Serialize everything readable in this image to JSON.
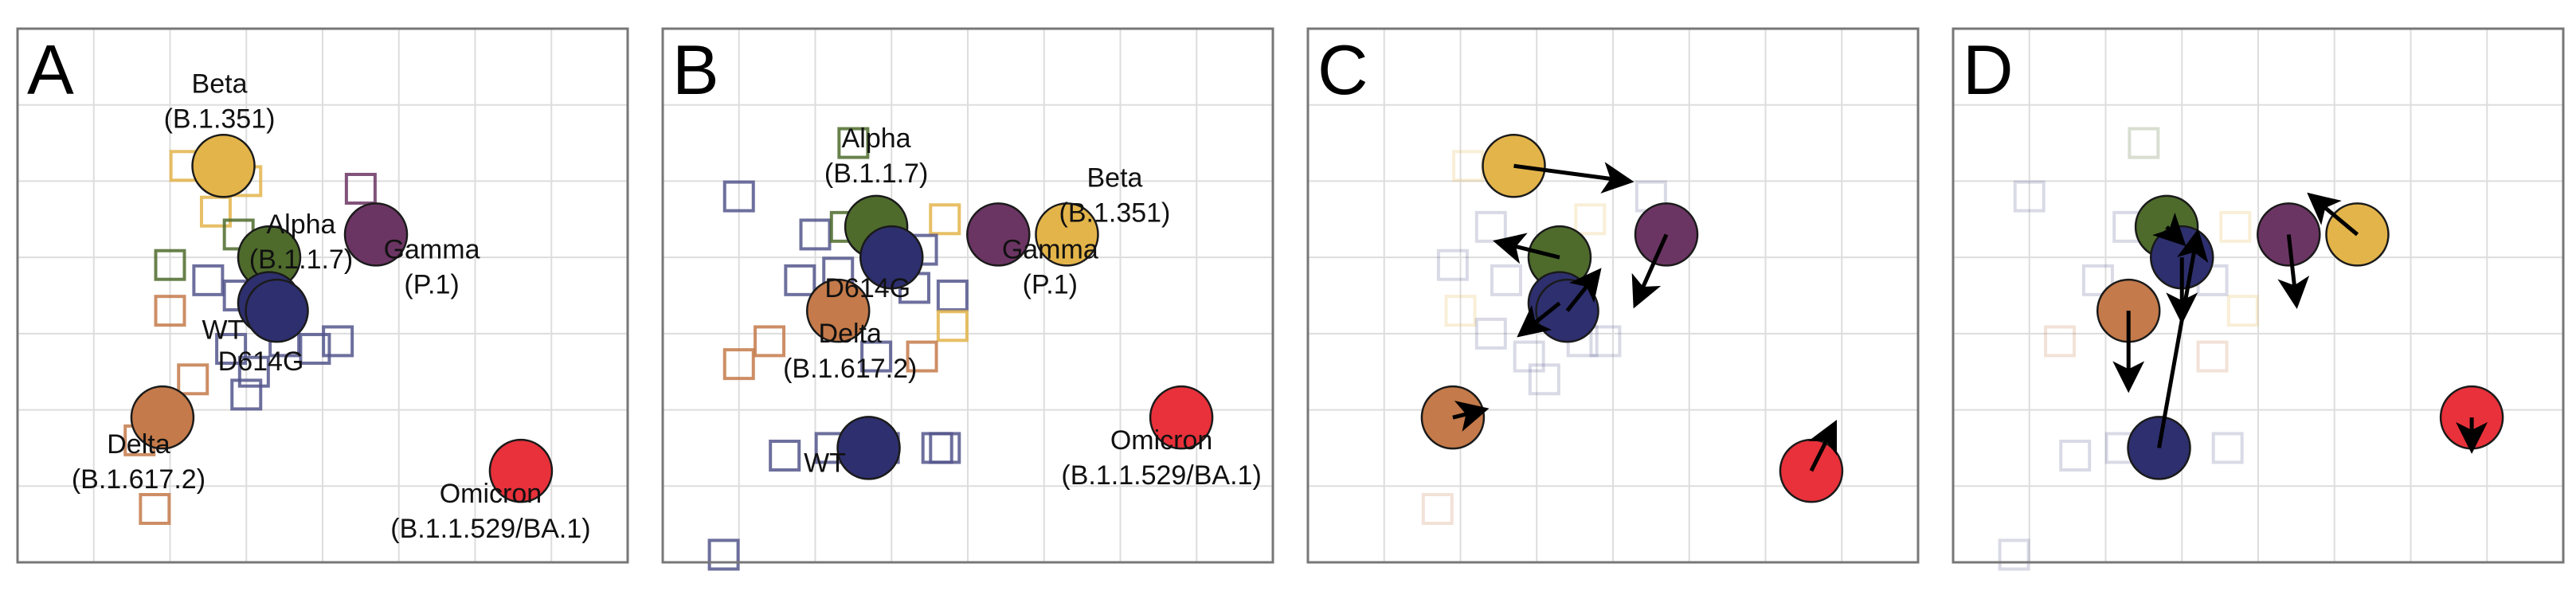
{
  "figure": {
    "colors": {
      "WT": "#2e2f6e",
      "D614G": "#2e2f6e",
      "Alpha": "#4e6b2c",
      "Beta": "#e3b44a",
      "Gamma": "#6b3563",
      "Delta": "#c47a4a",
      "Omicron": "#e8313a",
      "sera": "#53568c",
      "frame": "#777777",
      "grid": "#dddddd"
    }
  },
  "chart_data": [
    {
      "panel": "A",
      "type": "scatter",
      "xlim": [
        0,
        8
      ],
      "ylim": [
        0,
        7
      ],
      "grid": true,
      "antigens": [
        {
          "id": "Beta",
          "lines": [
            "Beta",
            "(B.1.351)"
          ],
          "x": 2.7,
          "y": 5.2,
          "color": "#e3b44a"
        },
        {
          "id": "Alpha",
          "lines": [
            "Alpha",
            "(B.1.1.7)"
          ],
          "x": 3.3,
          "y": 4.0,
          "color": "#4e6b2c"
        },
        {
          "id": "Gamma",
          "lines": [
            "Gamma",
            "(P.1)"
          ],
          "x": 4.7,
          "y": 4.3,
          "color": "#6b3563"
        },
        {
          "id": "WT",
          "lines": [
            "WT"
          ],
          "x": 3.3,
          "y": 3.4,
          "color": "#2e2f6e"
        },
        {
          "id": "D614G",
          "lines": [
            "D614G"
          ],
          "x": 3.4,
          "y": 3.3,
          "color": "#2e2f6e"
        },
        {
          "id": "Delta",
          "lines": [
            "Delta",
            "(B.1.617.2)"
          ],
          "x": 1.9,
          "y": 1.9,
          "color": "#c47a4a"
        },
        {
          "id": "Omicron",
          "lines": [
            "Omicron",
            "(B.1.1.529/BA.1)"
          ],
          "x": 6.6,
          "y": 1.2,
          "color": "#e8313a"
        }
      ],
      "sera": [
        {
          "x": 2.2,
          "y": 5.2,
          "color": "#e3b44a"
        },
        {
          "x": 3.0,
          "y": 5.0,
          "color": "#e3b44a"
        },
        {
          "x": 2.6,
          "y": 4.6,
          "color": "#e3b44a"
        },
        {
          "x": 4.5,
          "y": 4.9,
          "color": "#6b3563"
        },
        {
          "x": 2.0,
          "y": 3.9,
          "color": "#4e6b2c"
        },
        {
          "x": 2.9,
          "y": 4.3,
          "color": "#4e6b2c"
        },
        {
          "x": 2.5,
          "y": 3.7,
          "color": "#53568c"
        },
        {
          "x": 2.9,
          "y": 3.5,
          "color": "#53568c"
        },
        {
          "x": 3.5,
          "y": 2.9,
          "color": "#53568c"
        },
        {
          "x": 3.9,
          "y": 2.8,
          "color": "#53568c"
        },
        {
          "x": 4.2,
          "y": 2.9,
          "color": "#53568c"
        },
        {
          "x": 3.1,
          "y": 2.5,
          "color": "#53568c"
        },
        {
          "x": 2.8,
          "y": 2.8,
          "color": "#53568c"
        },
        {
          "x": 3.0,
          "y": 2.2,
          "color": "#53568c"
        },
        {
          "x": 2.0,
          "y": 3.3,
          "color": "#c47a4a"
        },
        {
          "x": 2.3,
          "y": 2.4,
          "color": "#c47a4a"
        },
        {
          "x": 1.8,
          "y": 0.7,
          "color": "#c47a4a"
        },
        {
          "x": 1.6,
          "y": 1.6,
          "color": "#c47a4a"
        }
      ]
    },
    {
      "panel": "B",
      "type": "scatter",
      "xlim": [
        0,
        8
      ],
      "ylim": [
        0,
        7
      ],
      "grid": true,
      "antigens": [
        {
          "id": "Alpha",
          "lines": [
            "Alpha",
            "(B.1.1.7)"
          ],
          "x": 2.8,
          "y": 4.4,
          "color": "#4e6b2c"
        },
        {
          "id": "Beta",
          "lines": [
            "Beta",
            "(B.1.351)"
          ],
          "x": 5.3,
          "y": 4.3,
          "color": "#e3b44a"
        },
        {
          "id": "Gamma",
          "lines": [
            "Gamma",
            "(P.1)"
          ],
          "x": 4.4,
          "y": 4.3,
          "color": "#6b3563"
        },
        {
          "id": "D614G",
          "lines": [
            "D614G"
          ],
          "x": 3.0,
          "y": 4.0,
          "color": "#2e2f6e"
        },
        {
          "id": "Delta",
          "lines": [
            "Delta",
            "(B.1.617.2)"
          ],
          "x": 2.3,
          "y": 3.3,
          "color": "#c47a4a"
        },
        {
          "id": "WT",
          "lines": [
            "WT"
          ],
          "x": 2.7,
          "y": 1.5,
          "color": "#2e2f6e"
        },
        {
          "id": "Omicron",
          "lines": [
            "Omicron",
            "(B.1.1.529/BA.1)"
          ],
          "x": 6.8,
          "y": 1.9,
          "color": "#e8313a"
        }
      ],
      "sera": [
        {
          "x": 1.0,
          "y": 4.8,
          "color": "#53568c"
        },
        {
          "x": 2.5,
          "y": 5.5,
          "color": "#4e6b2c"
        },
        {
          "x": 3.7,
          "y": 4.5,
          "color": "#e3b44a"
        },
        {
          "x": 2.0,
          "y": 4.3,
          "color": "#53568c"
        },
        {
          "x": 2.4,
          "y": 4.4,
          "color": "#4e6b2c"
        },
        {
          "x": 3.4,
          "y": 4.1,
          "color": "#53568c"
        },
        {
          "x": 1.8,
          "y": 3.7,
          "color": "#53568c"
        },
        {
          "x": 2.3,
          "y": 3.8,
          "color": "#53568c"
        },
        {
          "x": 3.3,
          "y": 3.6,
          "color": "#53568c"
        },
        {
          "x": 3.8,
          "y": 3.5,
          "color": "#53568c"
        },
        {
          "x": 3.8,
          "y": 3.1,
          "color": "#e3b44a"
        },
        {
          "x": 1.4,
          "y": 2.9,
          "color": "#c47a4a"
        },
        {
          "x": 1.0,
          "y": 2.6,
          "color": "#c47a4a"
        },
        {
          "x": 3.4,
          "y": 2.7,
          "color": "#c47a4a"
        },
        {
          "x": 2.8,
          "y": 2.7,
          "color": "#53568c"
        },
        {
          "x": 1.6,
          "y": 1.4,
          "color": "#53568c"
        },
        {
          "x": 2.2,
          "y": 1.5,
          "color": "#53568c"
        },
        {
          "x": 2.9,
          "y": 1.5,
          "color": "#53568c"
        },
        {
          "x": 3.6,
          "y": 1.5,
          "color": "#53568c"
        },
        {
          "x": 3.7,
          "y": 1.5,
          "color": "#53568c"
        },
        {
          "x": 0.8,
          "y": 0.1,
          "color": "#53568c"
        }
      ]
    },
    {
      "panel": "C",
      "type": "scatter",
      "xlim": [
        0,
        8
      ],
      "ylim": [
        0,
        7
      ],
      "grid": true,
      "antigens": [
        {
          "id": "Beta",
          "x": 2.7,
          "y": 5.2,
          "dx": 1.5,
          "dy": -0.2,
          "color": "#e3b44a"
        },
        {
          "id": "Gamma",
          "x": 4.7,
          "y": 4.3,
          "dx": -0.4,
          "dy": -0.9,
          "color": "#6b3563"
        },
        {
          "id": "Alpha",
          "x": 3.3,
          "y": 4.0,
          "dx": -0.8,
          "dy": 0.2,
          "color": "#4e6b2c"
        },
        {
          "id": "WT",
          "x": 3.3,
          "y": 3.4,
          "dx": -0.5,
          "dy": -0.4,
          "color": "#2e2f6e"
        },
        {
          "id": "D614G",
          "x": 3.4,
          "y": 3.3,
          "dx": 0.4,
          "dy": 0.5,
          "color": "#2e2f6e"
        },
        {
          "id": "Delta",
          "x": 1.9,
          "y": 1.9,
          "dx": 0.4,
          "dy": 0.1,
          "color": "#c47a4a"
        },
        {
          "id": "Omicron",
          "x": 6.6,
          "y": 1.2,
          "dx": 0.3,
          "dy": 0.6,
          "color": "#e8313a"
        }
      ],
      "sera": [
        {
          "x": 2.1,
          "y": 5.2,
          "color": "#e3b44a"
        },
        {
          "x": 3.7,
          "y": 4.5,
          "color": "#e3b44a"
        },
        {
          "x": 4.5,
          "y": 4.8,
          "color": "#53568c"
        },
        {
          "x": 2.4,
          "y": 4.4,
          "color": "#53568c"
        },
        {
          "x": 1.9,
          "y": 3.9,
          "color": "#53568c"
        },
        {
          "x": 2.6,
          "y": 3.7,
          "color": "#53568c"
        },
        {
          "x": 2.0,
          "y": 3.3,
          "color": "#e3b44a"
        },
        {
          "x": 2.4,
          "y": 3.0,
          "color": "#53568c"
        },
        {
          "x": 2.9,
          "y": 2.7,
          "color": "#53568c"
        },
        {
          "x": 3.6,
          "y": 2.9,
          "color": "#53568c"
        },
        {
          "x": 3.9,
          "y": 2.9,
          "color": "#53568c"
        },
        {
          "x": 3.1,
          "y": 2.4,
          "color": "#53568c"
        },
        {
          "x": 1.7,
          "y": 0.7,
          "color": "#c47a4a"
        }
      ]
    },
    {
      "panel": "D",
      "type": "scatter",
      "xlim": [
        0,
        8
      ],
      "ylim": [
        0,
        7
      ],
      "grid": true,
      "antigens": [
        {
          "id": "Beta",
          "x": 5.3,
          "y": 4.3,
          "dx": -0.6,
          "dy": 0.5,
          "color": "#e3b44a"
        },
        {
          "id": "Gamma",
          "x": 4.4,
          "y": 4.3,
          "dx": 0.1,
          "dy": -0.9,
          "color": "#6b3563"
        },
        {
          "id": "Alpha",
          "x": 2.8,
          "y": 4.4,
          "dx": 0.2,
          "dy": -0.2,
          "color": "#4e6b2c"
        },
        {
          "id": "D614G",
          "x": 3.0,
          "y": 4.0,
          "dx": 0.0,
          "dy": -0.8,
          "color": "#2e2f6e"
        },
        {
          "id": "WT",
          "x": 2.7,
          "y": 1.5,
          "dx": 0.5,
          "dy": 2.8,
          "color": "#2e2f6e"
        },
        {
          "id": "Delta",
          "x": 2.3,
          "y": 3.3,
          "dx": 0.0,
          "dy": -1.0,
          "color": "#c47a4a"
        },
        {
          "id": "Omicron",
          "x": 6.8,
          "y": 1.9,
          "dx": 0.0,
          "dy": -0.4,
          "color": "#e8313a"
        }
      ],
      "sera": [
        {
          "x": 2.5,
          "y": 5.5,
          "color": "#4e6b2c"
        },
        {
          "x": 1.0,
          "y": 4.8,
          "color": "#53568c"
        },
        {
          "x": 2.3,
          "y": 4.4,
          "color": "#53568c"
        },
        {
          "x": 3.7,
          "y": 4.4,
          "color": "#e3b44a"
        },
        {
          "x": 1.9,
          "y": 3.7,
          "color": "#53568c"
        },
        {
          "x": 3.4,
          "y": 3.7,
          "color": "#53568c"
        },
        {
          "x": 3.8,
          "y": 3.3,
          "color": "#e3b44a"
        },
        {
          "x": 1.4,
          "y": 2.9,
          "color": "#c47a4a"
        },
        {
          "x": 3.4,
          "y": 2.7,
          "color": "#c47a4a"
        },
        {
          "x": 2.2,
          "y": 1.5,
          "color": "#53568c"
        },
        {
          "x": 1.6,
          "y": 1.4,
          "color": "#53568c"
        },
        {
          "x": 3.6,
          "y": 1.5,
          "color": "#53568c"
        },
        {
          "x": 0.8,
          "y": 0.1,
          "color": "#53568c"
        }
      ]
    }
  ]
}
